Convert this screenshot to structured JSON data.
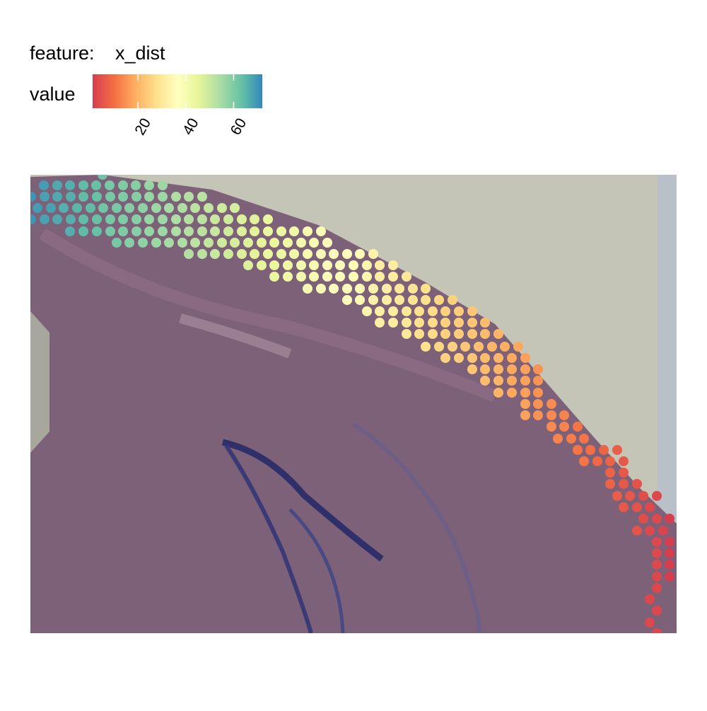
{
  "chart_data": {
    "type": "scatter",
    "feature_label": "feature:",
    "feature": "x_dist",
    "colorbar_title": "value",
    "colorlim": [
      1,
      72
    ],
    "colorticks": [
      20,
      40,
      60
    ],
    "colors": [
      "#d53e4f",
      "#f46d43",
      "#fdae61",
      "#fee08b",
      "#ffffbf",
      "#e6f598",
      "#abdda4",
      "#66c2a5",
      "#3288bd"
    ],
    "xlim": [
      0,
      914
    ],
    "ylim": [
      0,
      648
    ],
    "y_reversed": true,
    "rows": [
      {
        "y": 0,
        "x": [
          102
        ],
        "values": [
          62
        ]
      },
      {
        "y": 15,
        "x": [
          19,
          38,
          56,
          75,
          93,
          112,
          131,
          149,
          168,
          187
        ],
        "values": [
          69,
          67,
          66,
          64,
          63,
          61,
          60,
          59,
          57,
          56
        ]
      },
      {
        "y": 31,
        "x": [
          1,
          20,
          38,
          57,
          75,
          94,
          113,
          131,
          150,
          168,
          187,
          206,
          224,
          243
        ],
        "values": [
          70,
          68,
          67,
          66,
          64,
          63,
          61,
          60,
          59,
          57,
          56,
          54,
          53,
          52
        ]
      },
      {
        "y": 47,
        "x": [
          10,
          29,
          47,
          66,
          85,
          103,
          122,
          140,
          159,
          178,
          196,
          215,
          233,
          252,
          271,
          289
        ],
        "values": [
          69,
          68,
          66,
          65,
          64,
          62,
          61,
          59,
          58,
          56,
          55,
          54,
          52,
          51,
          49,
          48
        ]
      },
      {
        "y": 63,
        "x": [
          1,
          20,
          38,
          57,
          75,
          94,
          113,
          131,
          150,
          168,
          187,
          206,
          224,
          243,
          261,
          280,
          299,
          317,
          336
        ],
        "values": [
          70,
          68,
          67,
          66,
          64,
          63,
          61,
          60,
          59,
          57,
          56,
          54,
          53,
          52,
          50,
          49,
          47,
          46,
          44
        ]
      },
      {
        "y": 80,
        "x": [
          56,
          75,
          94,
          113,
          131,
          150,
          168,
          187,
          206,
          224,
          243,
          261,
          280,
          299,
          317,
          336,
          355,
          373,
          392,
          411
        ],
        "values": [
          66,
          64,
          63,
          61,
          60,
          59,
          57,
          56,
          54,
          53,
          52,
          50,
          49,
          47,
          46,
          44,
          43,
          42,
          40,
          39
        ]
      },
      {
        "y": 96,
        "x": [
          122,
          140,
          159,
          178,
          196,
          215,
          233,
          252,
          271,
          289,
          308,
          327,
          345,
          364,
          383,
          401,
          420
        ],
        "values": [
          61,
          59,
          58,
          56,
          55,
          54,
          52,
          51,
          49,
          48,
          47,
          45,
          44,
          42,
          41,
          40,
          38
        ]
      },
      {
        "y": 112,
        "x": [
          224,
          243,
          261,
          280,
          299,
          317,
          336,
          355,
          373,
          392,
          411,
          429,
          448,
          466,
          485
        ],
        "values": [
          53,
          52,
          50,
          49,
          47,
          46,
          44,
          43,
          42,
          40,
          39,
          37,
          36,
          35,
          33
        ]
      },
      {
        "y": 128,
        "x": [
          308,
          327,
          345,
          364,
          383,
          401,
          420,
          438,
          457,
          476,
          494,
          513
        ],
        "values": [
          47,
          45,
          44,
          42,
          41,
          40,
          38,
          37,
          35,
          34,
          32,
          31
        ]
      },
      {
        "y": 144,
        "x": [
          345,
          364,
          383,
          401,
          420,
          438,
          457,
          476,
          494,
          513,
          532
        ],
        "values": [
          44,
          42,
          41,
          40,
          38,
          37,
          35,
          34,
          32,
          31,
          30
        ]
      },
      {
        "y": 161,
        "x": [
          392,
          411,
          429,
          448,
          466,
          485,
          504,
          522,
          541,
          559
        ],
        "values": [
          40,
          39,
          37,
          36,
          35,
          33,
          32,
          30,
          29,
          28
        ]
      },
      {
        "y": 177,
        "x": [
          448,
          466,
          485,
          504,
          522,
          541,
          559,
          578,
          597
        ],
        "values": [
          36,
          35,
          33,
          32,
          30,
          29,
          28,
          26,
          25
        ]
      },
      {
        "y": 193,
        "x": [
          476,
          494,
          513,
          532,
          550,
          569,
          587,
          606,
          625
        ],
        "values": [
          34,
          32,
          31,
          30,
          28,
          27,
          25,
          24,
          23
        ]
      },
      {
        "y": 209,
        "x": [
          494,
          513,
          532,
          550,
          569,
          587,
          606,
          625,
          643
        ],
        "values": [
          32,
          31,
          30,
          28,
          27,
          25,
          24,
          23,
          21
        ]
      },
      {
        "y": 225,
        "x": [
          532,
          550,
          569,
          587,
          606,
          625,
          643,
          662
        ],
        "values": [
          30,
          28,
          27,
          25,
          24,
          23,
          21,
          20
        ]
      },
      {
        "y": 243,
        "x": [
          559,
          578,
          597,
          615,
          634,
          653,
          671,
          690
        ],
        "values": [
          28,
          26,
          25,
          23,
          22,
          20,
          19,
          18
        ]
      },
      {
        "y": 259,
        "x": [
          587,
          606,
          625,
          643,
          662,
          681,
          700
        ],
        "values": [
          25,
          24,
          23,
          21,
          20,
          18,
          17
        ]
      },
      {
        "y": 275,
        "x": [
          625,
          643,
          662,
          681,
          700,
          718
        ],
        "values": [
          23,
          21,
          20,
          18,
          17,
          15
        ]
      },
      {
        "y": 291,
        "x": [
          643,
          662,
          681,
          700,
          718
        ],
        "values": [
          21,
          20,
          18,
          17,
          15
        ]
      },
      {
        "y": 308,
        "x": [
          662,
          681,
          700,
          718
        ],
        "values": [
          20,
          18,
          17,
          15
        ]
      },
      {
        "y": 324,
        "x": [
          700,
          718,
          737
        ],
        "values": [
          17,
          15,
          14
        ]
      },
      {
        "y": 340,
        "x": [
          700,
          718,
          737,
          755
        ],
        "values": [
          17,
          15,
          14,
          13
        ]
      },
      {
        "y": 356,
        "x": [
          737,
          755,
          774
        ],
        "values": [
          14,
          13,
          11
        ]
      },
      {
        "y": 373,
        "x": [
          746,
          765,
          783
        ],
        "values": [
          13,
          12,
          11
        ]
      },
      {
        "y": 389,
        "x": [
          774,
          792,
          811,
          830
        ],
        "values": [
          11,
          10,
          8,
          7
        ]
      },
      {
        "y": 405,
        "x": [
          783,
          802,
          820,
          839
        ],
        "values": [
          11,
          9,
          8,
          6
        ]
      },
      {
        "y": 421,
        "x": [
          820,
          839
        ],
        "values": [
          8,
          6
        ]
      },
      {
        "y": 437,
        "x": [
          820,
          839,
          858
        ],
        "values": [
          8,
          6,
          5
        ]
      },
      {
        "y": 454,
        "x": [
          830,
          848,
          867,
          886
        ],
        "values": [
          7,
          6,
          4,
          3
        ]
      },
      {
        "y": 470,
        "x": [
          839,
          858,
          876
        ],
        "values": [
          6,
          5,
          3
        ]
      },
      {
        "y": 486,
        "x": [
          867,
          886,
          904
        ],
        "values": [
          4,
          3,
          1
        ]
      },
      {
        "y": 503,
        "x": [
          858,
          876,
          895
        ],
        "values": [
          5,
          3,
          2
        ]
      },
      {
        "y": 519,
        "x": [
          886,
          904
        ],
        "values": [
          3,
          1
        ]
      },
      {
        "y": 535,
        "x": [
          886,
          904
        ],
        "values": [
          3,
          1
        ]
      },
      {
        "y": 551,
        "x": [
          886,
          904
        ],
        "values": [
          3,
          1
        ]
      },
      {
        "y": 568,
        "x": [
          886,
          904
        ],
        "values": [
          3,
          1
        ]
      },
      {
        "y": 584,
        "x": [
          886
        ],
        "values": [
          3
        ]
      },
      {
        "y": 600,
        "x": [
          876
        ],
        "values": [
          3
        ]
      },
      {
        "y": 616,
        "x": [
          886
        ],
        "values": [
          3
        ]
      },
      {
        "y": 633,
        "x": [
          876
        ],
        "values": [
          3
        ]
      },
      {
        "y": 648,
        "x": [
          886
        ],
        "values": [
          3
        ]
      }
    ]
  }
}
